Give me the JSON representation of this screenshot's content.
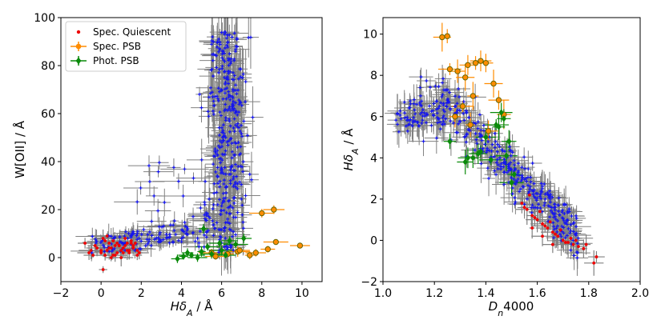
{
  "colors": {
    "quiescent": "#ee0000",
    "psb_spec": "#ff8c00",
    "psb_phot": "#0a8a0a",
    "star_forming": "#1515ee",
    "error_bar": "#808080",
    "psb_marker_edge": "#666600"
  },
  "chart_data": [
    {
      "type": "scatter",
      "title": "",
      "xlabel": "Hδ_A / Å",
      "ylabel": "W[OII] / Å",
      "xlim": [
        -2,
        11
      ],
      "ylim": [
        -10,
        100
      ],
      "xticks": [
        -2,
        0,
        2,
        4,
        6,
        8,
        10
      ],
      "yticks": [
        0,
        20,
        40,
        60,
        80,
        100
      ],
      "xtick_labels": [
        "−2",
        "0",
        "2",
        "4",
        "6",
        "8",
        "10"
      ],
      "ytick_labels": [
        "0",
        "20",
        "40",
        "60",
        "80",
        "100"
      ],
      "grid": false,
      "legend": {
        "placement": "top-left",
        "entries": [
          {
            "label": "Spec. Quiescent",
            "series": "quiescent"
          },
          {
            "label": "Spec. PSB",
            "series": "psb_spec"
          },
          {
            "label": "Phot. PSB",
            "series": "psb_phot"
          }
        ]
      },
      "series": [
        {
          "name": "Spec. Quiescent",
          "key": "quiescent",
          "marker": "dot",
          "x": [
            -0.8,
            -0.5,
            -0.3,
            0.0,
            0.2,
            0.4,
            0.6,
            0.8,
            1.0,
            1.2,
            1.4,
            1.6,
            1.8,
            0.1,
            0.5,
            0.9,
            1.3,
            1.7,
            -0.6,
            0.3,
            0.7,
            1.1,
            1.5,
            0.0,
            0.4,
            0.8,
            1.2,
            1.6,
            -0.2,
            0.6,
            1.0,
            1.4,
            0.2,
            0.9,
            1.3,
            1.8,
            -0.4,
            0.5,
            1.1,
            1.5,
            0.3,
            0.7,
            1.9,
            0.1
          ],
          "y": [
            6,
            3,
            5,
            2,
            7,
            4,
            1,
            6,
            3,
            5,
            2,
            4,
            1,
            8,
            0,
            5,
            3,
            6,
            2,
            9,
            1,
            4,
            7,
            3,
            6,
            2,
            8,
            5,
            4,
            7,
            0,
            3,
            1,
            5,
            6,
            3,
            1,
            4,
            2,
            6,
            3,
            5,
            2,
            -5
          ]
        },
        {
          "name": "Spec. PSB",
          "key": "psb_spec",
          "marker": "circle",
          "x": [
            8.0,
            8.6,
            9.9,
            8.7,
            8.3,
            7.7,
            7.4,
            6.8,
            6.3,
            5.7,
            6.9,
            5.5
          ],
          "y": [
            18.5,
            20.0,
            5.0,
            6.5,
            3.5,
            2.0,
            1.0,
            2.5,
            1.5,
            0.5,
            3.0,
            2.0
          ]
        },
        {
          "name": "Phot. PSB",
          "key": "psb_phot",
          "marker": "diamond",
          "x": [
            4.1,
            4.5,
            5.0,
            5.5,
            6.0,
            6.4,
            3.8,
            4.8,
            5.3,
            5.9,
            6.7,
            7.1,
            4.3,
            6.2,
            5.1
          ],
          "y": [
            0.5,
            1.0,
            2.5,
            1.5,
            3.0,
            7.0,
            -0.5,
            0.0,
            4.5,
            6.0,
            5.5,
            8.0,
            2.0,
            1.0,
            12.0
          ]
        }
      ]
    },
    {
      "type": "scatter",
      "title": "",
      "xlabel": "D_n4000",
      "ylabel": "Hδ_A / Å",
      "xlim": [
        1.0,
        2.0
      ],
      "ylim": [
        -2,
        10.8
      ],
      "xticks": [
        1.0,
        1.2,
        1.4,
        1.6,
        1.8,
        2.0
      ],
      "yticks": [
        -2,
        0,
        2,
        4,
        6,
        8,
        10
      ],
      "xtick_labels": [
        "1.0",
        "1.2",
        "1.4",
        "1.6",
        "1.8",
        "2.0"
      ],
      "ytick_labels": [
        "−2",
        "0",
        "2",
        "4",
        "6",
        "8",
        "10"
      ],
      "grid": false,
      "series": [
        {
          "name": "Spec. Quiescent",
          "key": "quiescent",
          "marker": "dot",
          "x": [
            1.54,
            1.56,
            1.58,
            1.6,
            1.62,
            1.64,
            1.66,
            1.68,
            1.7,
            1.72,
            1.74,
            1.76,
            1.78,
            1.83,
            1.57,
            1.61,
            1.65,
            1.69,
            1.73,
            1.55,
            1.59,
            1.63,
            1.67,
            1.71,
            1.75,
            1.79,
            1.82,
            1.58,
            1.62,
            1.66
          ],
          "y": [
            1.8,
            1.5,
            1.2,
            1.0,
            0.8,
            0.6,
            0.4,
            0.2,
            0.0,
            -0.1,
            -0.2,
            -0.3,
            -0.4,
            -0.8,
            2.2,
            1.4,
            0.9,
            0.5,
            0.1,
            1.6,
            1.1,
            0.7,
            0.3,
            -0.1,
            0.0,
            -0.2,
            -1.1,
            0.6,
            0.2,
            -0.2
          ]
        },
        {
          "name": "Spec. PSB",
          "key": "psb_spec",
          "marker": "circle",
          "x": [
            1.23,
            1.25,
            1.33,
            1.36,
            1.38,
            1.4,
            1.43,
            1.45,
            1.26,
            1.29,
            1.32,
            1.35,
            1.31,
            1.47,
            1.34,
            1.28,
            1.41
          ],
          "y": [
            9.85,
            9.9,
            8.5,
            8.6,
            8.7,
            8.6,
            7.6,
            6.8,
            8.3,
            8.2,
            7.9,
            7.0,
            6.5,
            6.1,
            5.6,
            6.0,
            5.3
          ]
        },
        {
          "name": "Phot. PSB",
          "key": "psb_phot",
          "marker": "diamond",
          "x": [
            1.26,
            1.33,
            1.37,
            1.42,
            1.45,
            1.47,
            1.49,
            1.51,
            1.46,
            1.4,
            1.35,
            1.48,
            1.44,
            1.5,
            1.32,
            1.38
          ],
          "y": [
            4.8,
            4.0,
            4.2,
            3.9,
            5.5,
            5.9,
            4.8,
            3.2,
            6.2,
            5.0,
            4.0,
            4.1,
            5.6,
            2.8,
            3.8,
            4.3
          ]
        }
      ]
    }
  ]
}
